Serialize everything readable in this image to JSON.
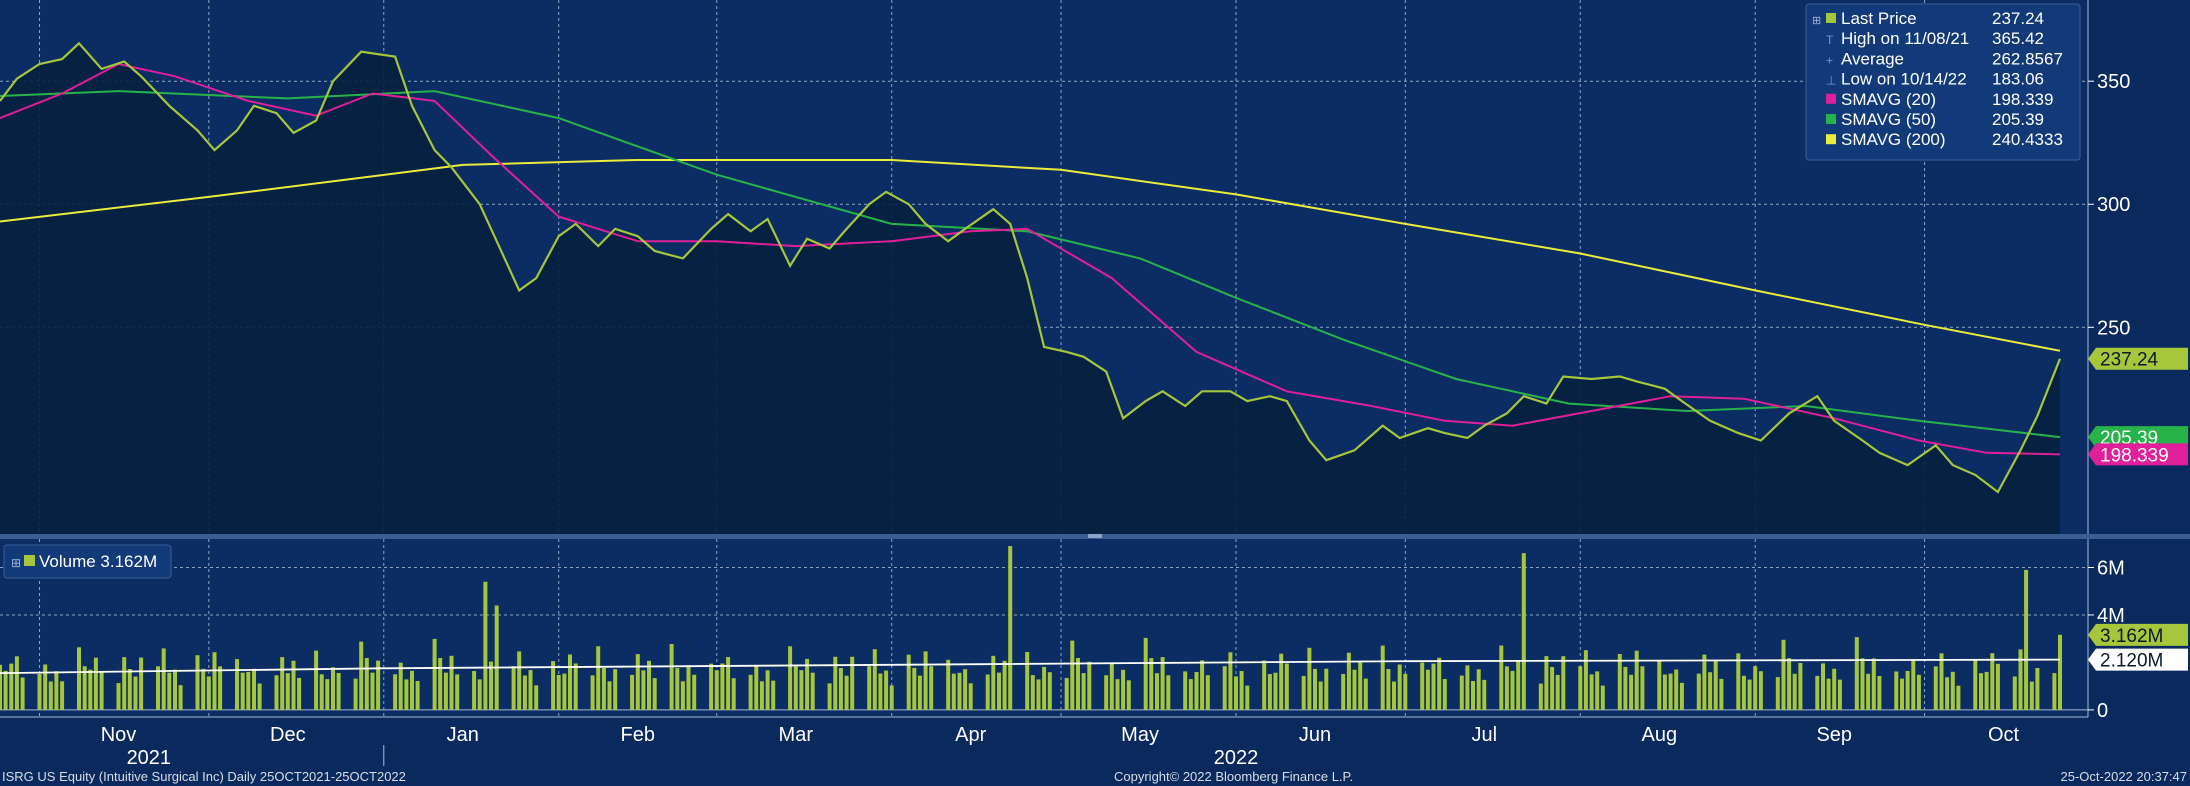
{
  "footer": {
    "left": "ISRG US Equity (Intuitive Surgical Inc)  Daily 25OCT2021-25OCT2022",
    "center": "Copyright© 2022 Bloomberg Finance L.P.",
    "right": "25-Oct-2022 20:37:47"
  },
  "colors": {
    "background": "#0a2a5e",
    "plot_area": "#07204b",
    "price": "#a6c63b",
    "sma20": "#e0209a",
    "sma50": "#27b34a",
    "sma200": "#ecec3c",
    "volume": "#a6c63b",
    "volume_avg": "#ffffff"
  },
  "chart_data": [
    {
      "type": "line",
      "title": "",
      "x_axis": {
        "month_labels": [
          "Nov",
          "Dec",
          "Jan",
          "Feb",
          "Mar",
          "Apr",
          "May",
          "Jun",
          "Jul",
          "Aug",
          "Sep",
          "Oct"
        ],
        "year_labels": [
          "2021",
          "2022"
        ],
        "range": [
          "2021-10-25",
          "2022-10-25"
        ]
      },
      "y_axis": {
        "ticks": [
          250,
          300,
          350
        ],
        "range": [
          166,
          383
        ],
        "grid": true
      },
      "legend": {
        "placement": "top-right",
        "entries": [
          {
            "label": "Last Price",
            "value": "237.24"
          },
          {
            "label": "High on 11/08/21",
            "value": "365.42"
          },
          {
            "label": "Average",
            "value": "262.8567"
          },
          {
            "label": "Low on 10/14/22",
            "value": "183.06"
          },
          {
            "label": "SMAVG (20)",
            "value": "198.339"
          },
          {
            "label": "SMAVG (50)",
            "value": "205.39"
          },
          {
            "label": "SMAVG (200)",
            "value": "240.4333"
          }
        ]
      },
      "price_tags": [
        {
          "label": "237.24",
          "value": 237.24,
          "series": "price"
        },
        {
          "label": "205.39",
          "value": 205.39,
          "series": "sma50"
        },
        {
          "label": "198.339",
          "value": 198.339,
          "series": "sma20"
        }
      ],
      "series": [
        {
          "name": "Last Price",
          "key": "price",
          "points": [
            [
              "2021-10-25",
              342
            ],
            [
              "2021-10-28",
              351
            ],
            [
              "2021-11-01",
              357
            ],
            [
              "2021-11-05",
              359
            ],
            [
              "2021-11-08",
              365.42
            ],
            [
              "2021-11-12",
              355
            ],
            [
              "2021-11-16",
              358
            ],
            [
              "2021-11-19",
              352
            ],
            [
              "2021-11-24",
              340
            ],
            [
              "2021-11-29",
              330
            ],
            [
              "2021-12-02",
              322
            ],
            [
              "2021-12-06",
              330
            ],
            [
              "2021-12-09",
              340
            ],
            [
              "2021-12-13",
              337
            ],
            [
              "2021-12-16",
              329
            ],
            [
              "2021-12-20",
              334
            ],
            [
              "2021-12-23",
              350
            ],
            [
              "2021-12-28",
              362
            ],
            [
              "2022-01-03",
              360
            ],
            [
              "2022-01-06",
              340
            ],
            [
              "2022-01-10",
              322
            ],
            [
              "2022-01-13",
              315
            ],
            [
              "2022-01-18",
              300
            ],
            [
              "2022-01-21",
              285
            ],
            [
              "2022-01-25",
              265
            ],
            [
              "2022-01-28",
              270
            ],
            [
              "2022-02-01",
              287
            ],
            [
              "2022-02-04",
              292
            ],
            [
              "2022-02-08",
              283
            ],
            [
              "2022-02-11",
              290
            ],
            [
              "2022-02-15",
              287
            ],
            [
              "2022-02-18",
              281
            ],
            [
              "2022-02-23",
              278
            ],
            [
              "2022-02-28",
              290
            ],
            [
              "2022-03-03",
              296
            ],
            [
              "2022-03-07",
              289
            ],
            [
              "2022-03-10",
              294
            ],
            [
              "2022-03-14",
              275
            ],
            [
              "2022-03-17",
              286
            ],
            [
              "2022-03-21",
              282
            ],
            [
              "2022-03-24",
              290
            ],
            [
              "2022-03-28",
              300
            ],
            [
              "2022-03-31",
              305
            ],
            [
              "2022-04-04",
              300
            ],
            [
              "2022-04-07",
              292
            ],
            [
              "2022-04-11",
              285
            ],
            [
              "2022-04-14",
              290
            ],
            [
              "2022-04-19",
              298
            ],
            [
              "2022-04-22",
              292
            ],
            [
              "2022-04-25",
              270
            ],
            [
              "2022-04-28",
              242
            ],
            [
              "2022-05-02",
              240
            ],
            [
              "2022-05-05",
              238
            ],
            [
              "2022-05-09",
              232
            ],
            [
              "2022-05-12",
              213
            ],
            [
              "2022-05-16",
              220
            ],
            [
              "2022-05-19",
              224
            ],
            [
              "2022-05-23",
              218
            ],
            [
              "2022-05-26",
              224
            ],
            [
              "2022-05-31",
              224
            ],
            [
              "2022-06-03",
              220
            ],
            [
              "2022-06-07",
              222
            ],
            [
              "2022-06-10",
              220
            ],
            [
              "2022-06-14",
              204
            ],
            [
              "2022-06-17",
              196
            ],
            [
              "2022-06-22",
              200
            ],
            [
              "2022-06-27",
              210
            ],
            [
              "2022-06-30",
              205
            ],
            [
              "2022-07-05",
              209
            ],
            [
              "2022-07-08",
              207
            ],
            [
              "2022-07-12",
              205
            ],
            [
              "2022-07-15",
              210
            ],
            [
              "2022-07-19",
              215
            ],
            [
              "2022-07-22",
              222
            ],
            [
              "2022-07-26",
              219
            ],
            [
              "2022-07-29",
              230
            ],
            [
              "2022-08-03",
              229
            ],
            [
              "2022-08-08",
              230
            ],
            [
              "2022-08-11",
              228
            ],
            [
              "2022-08-16",
              225
            ],
            [
              "2022-08-19",
              220
            ],
            [
              "2022-08-24",
              212
            ],
            [
              "2022-08-29",
              207
            ],
            [
              "2022-09-02",
              204
            ],
            [
              "2022-09-07",
              215
            ],
            [
              "2022-09-12",
              222
            ],
            [
              "2022-09-15",
              212
            ],
            [
              "2022-09-20",
              204
            ],
            [
              "2022-09-23",
              199
            ],
            [
              "2022-09-28",
              194
            ],
            [
              "2022-10-03",
              202
            ],
            [
              "2022-10-06",
              194
            ],
            [
              "2022-10-10",
              190
            ],
            [
              "2022-10-14",
              183.06
            ],
            [
              "2022-10-18",
              200
            ],
            [
              "2022-10-21",
              214
            ],
            [
              "2022-10-25",
              237.24
            ]
          ]
        },
        {
          "name": "SMAVG (20)",
          "key": "sma20",
          "points": [
            [
              "2021-10-25",
              335
            ],
            [
              "2021-11-05",
              345
            ],
            [
              "2021-11-15",
              357
            ],
            [
              "2021-11-25",
              352
            ],
            [
              "2021-12-08",
              342
            ],
            [
              "2021-12-20",
              336
            ],
            [
              "2021-12-30",
              345
            ],
            [
              "2022-01-10",
              342
            ],
            [
              "2022-01-20",
              320
            ],
            [
              "2022-02-01",
              295
            ],
            [
              "2022-02-15",
              285
            ],
            [
              "2022-03-01",
              285
            ],
            [
              "2022-03-15",
              283
            ],
            [
              "2022-04-01",
              285
            ],
            [
              "2022-04-15",
              289
            ],
            [
              "2022-04-25",
              290
            ],
            [
              "2022-05-10",
              270
            ],
            [
              "2022-05-25",
              240
            ],
            [
              "2022-06-10",
              224
            ],
            [
              "2022-06-25",
              218
            ],
            [
              "2022-07-08",
              212
            ],
            [
              "2022-07-20",
              210
            ],
            [
              "2022-08-03",
              216
            ],
            [
              "2022-08-17",
              222
            ],
            [
              "2022-08-30",
              221
            ],
            [
              "2022-09-15",
              213
            ],
            [
              "2022-09-30",
              204
            ],
            [
              "2022-10-12",
              199
            ],
            [
              "2022-10-25",
              198.339
            ]
          ]
        },
        {
          "name": "SMAVG (50)",
          "key": "sma50",
          "points": [
            [
              "2021-10-25",
              344
            ],
            [
              "2021-11-15",
              346
            ],
            [
              "2021-12-15",
              343
            ],
            [
              "2022-01-10",
              346
            ],
            [
              "2022-02-01",
              335
            ],
            [
              "2022-03-01",
              312
            ],
            [
              "2022-04-01",
              292
            ],
            [
              "2022-04-25",
              289
            ],
            [
              "2022-05-15",
              278
            ],
            [
              "2022-06-01",
              262
            ],
            [
              "2022-06-20",
              245
            ],
            [
              "2022-07-10",
              229
            ],
            [
              "2022-07-30",
              219
            ],
            [
              "2022-08-20",
              216
            ],
            [
              "2022-09-10",
              218
            ],
            [
              "2022-09-30",
              212
            ],
            [
              "2022-10-25",
              205.39
            ]
          ]
        },
        {
          "name": "SMAVG (200)",
          "key": "sma200",
          "points": [
            [
              "2021-10-25",
              293
            ],
            [
              "2021-12-01",
              303
            ],
            [
              "2022-01-15",
              316
            ],
            [
              "2022-02-15",
              318
            ],
            [
              "2022-04-01",
              318
            ],
            [
              "2022-05-01",
              314
            ],
            [
              "2022-06-01",
              304
            ],
            [
              "2022-07-01",
              292
            ],
            [
              "2022-08-01",
              280
            ],
            [
              "2022-09-01",
              265
            ],
            [
              "2022-10-01",
              251
            ],
            [
              "2022-10-25",
              240.4333
            ]
          ]
        }
      ]
    },
    {
      "type": "bar",
      "title": "",
      "legend": {
        "placement": "top-left",
        "label": "Volume",
        "value": "3.162M"
      },
      "y_axis": {
        "ticks": [
          {
            "label": "0",
            "value": 0
          },
          {
            "label": "4M",
            "value": 4
          },
          {
            "label": "6M",
            "value": 6
          }
        ],
        "range": [
          -0.3,
          7.2
        ],
        "unit": "M"
      },
      "value_tags": [
        {
          "label": "3.162M",
          "value": 3.162,
          "series": "volume"
        },
        {
          "label": "2.120M",
          "value": 2.12,
          "series": "volume_avg"
        }
      ],
      "average": {
        "name": "volume_avg",
        "points": [
          [
            "2021-10-25",
            1.55
          ],
          [
            "2022-01-01",
            1.75
          ],
          [
            "2022-04-01",
            1.9
          ],
          [
            "2022-07-01",
            2.05
          ],
          [
            "2022-10-25",
            2.12
          ]
        ]
      },
      "spikes": [
        [
          "2022-01-19",
          5.4
        ],
        [
          "2022-01-21",
          4.4
        ],
        [
          "2022-04-22",
          6.9
        ],
        [
          "2022-07-22",
          6.6
        ],
        [
          "2022-10-19",
          5.9
        ],
        [
          "2022-10-25",
          3.162
        ]
      ],
      "baseline_values": [
        1.9,
        1.5,
        1.7,
        2.0,
        1.3,
        1.6,
        2.2,
        1.4,
        1.8,
        1.2,
        2.4,
        1.6,
        1.5,
        2.1,
        1.7,
        1.3,
        2.6,
        1.9,
        1.4,
        2.0,
        1.6,
        2.3,
        1.5,
        1.8,
        1.2,
        2.7,
        1.9,
        1.4,
        2.2,
        1.6
      ]
    }
  ]
}
